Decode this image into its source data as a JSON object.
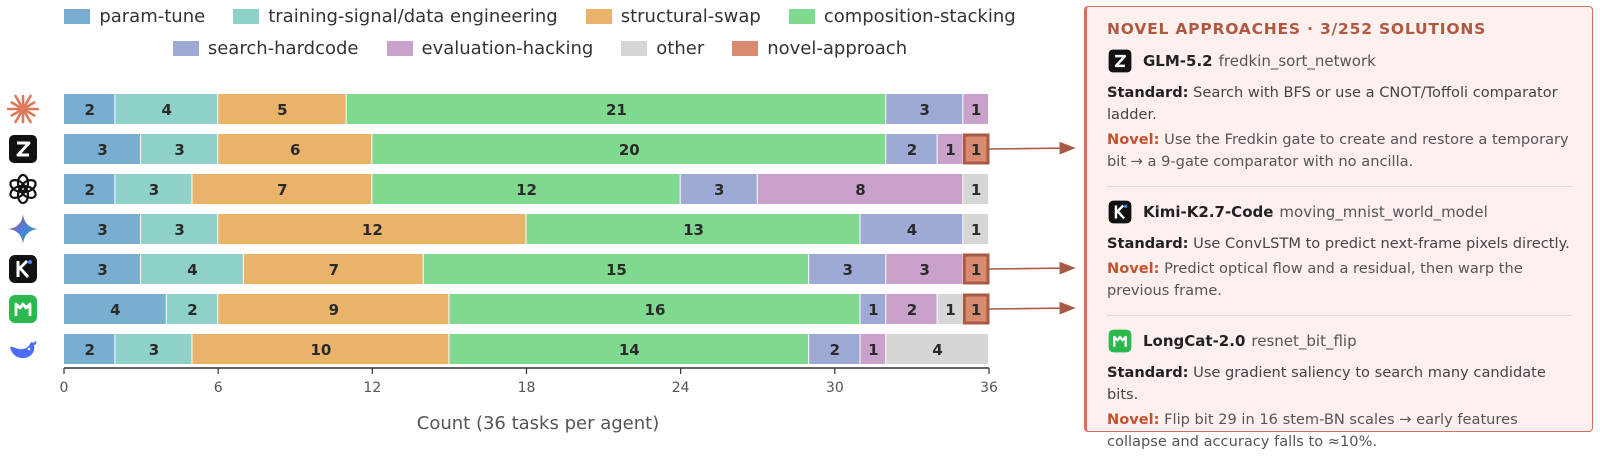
{
  "chart_data": {
    "type": "bar",
    "orientation": "horizontal",
    "stacked": true,
    "xlabel": "Count (36 tasks per agent)",
    "xlim": [
      0,
      36
    ],
    "xticks": [
      0,
      6,
      12,
      18,
      24,
      30,
      36
    ],
    "legend_position": "top",
    "categories": [
      "claude",
      "glm",
      "openai",
      "gemini",
      "kimi",
      "longcat",
      "deepseek"
    ],
    "series": [
      {
        "name": "param-tune",
        "color": "#7aaed0",
        "values": [
          2,
          3,
          2,
          3,
          3,
          4,
          2
        ]
      },
      {
        "name": "training-signal/data engineering",
        "color": "#8dd1c9",
        "values": [
          4,
          3,
          3,
          3,
          4,
          2,
          3
        ]
      },
      {
        "name": "structural-swap",
        "color": "#e9b36a",
        "values": [
          5,
          6,
          7,
          12,
          7,
          9,
          10
        ]
      },
      {
        "name": "composition-stacking",
        "color": "#7fd98e",
        "values": [
          21,
          20,
          12,
          13,
          15,
          16,
          14
        ]
      },
      {
        "name": "search-hardcode",
        "color": "#9fa9d6",
        "values": [
          3,
          2,
          3,
          4,
          3,
          1,
          2
        ]
      },
      {
        "name": "evaluation-hacking",
        "color": "#c9a2cb",
        "values": [
          1,
          1,
          8,
          0,
          3,
          2,
          1
        ]
      },
      {
        "name": "other",
        "color": "#d6d6d6",
        "values": [
          0,
          0,
          1,
          1,
          0,
          1,
          4
        ]
      },
      {
        "name": "novel-approach",
        "color": "#d98b6f",
        "values": [
          0,
          1,
          0,
          0,
          1,
          1,
          0
        ]
      }
    ],
    "agent_icons": [
      {
        "icon": "claude-sunburst-icon",
        "color": "#e0795a"
      },
      {
        "icon": "glm-z-icon",
        "color": "#111111"
      },
      {
        "icon": "openai-knot-icon",
        "color": "#111111"
      },
      {
        "icon": "gemini-star-icon",
        "color": "#4a7de8"
      },
      {
        "icon": "kimi-k-icon",
        "color": "#111111"
      },
      {
        "icon": "longcat-icon",
        "color": "#2db84e"
      },
      {
        "icon": "deepseek-whale-icon",
        "color": "#4d6bfe"
      }
    ]
  },
  "panel": {
    "title": "NOVEL APPROACHES · 3/252 SOLUTIONS",
    "standard_label": "Standard:",
    "novel_label": "Novel:",
    "solutions": [
      {
        "model": "GLM-5.2",
        "task": "fredkin_sort_network",
        "icon": "glm-z-icon",
        "standard": "Search with BFS or use a CNOT/Toffoli comparator ladder.",
        "novel": "Use the Fredkin gate to create and restore a temporary bit → a 9-gate comparator with no ancilla."
      },
      {
        "model": "Kimi-K2.7-Code",
        "task": "moving_mnist_world_model",
        "icon": "kimi-k-icon",
        "standard": "Use ConvLSTM to predict next-frame pixels directly.",
        "novel": "Predict optical flow and a residual, then warp the previous frame."
      },
      {
        "model": "LongCat-2.0",
        "task": "resnet_bit_flip",
        "icon": "longcat-icon",
        "standard": "Use gradient saliency to search many candidate bits.",
        "novel": "Flip bit 29 in 16 stem-BN scales → early features collapse and accuracy falls to ≈10%."
      }
    ]
  },
  "colors": {
    "accent": "#b05840",
    "callout": "#a95a44",
    "novel_text": "#c1542f"
  }
}
